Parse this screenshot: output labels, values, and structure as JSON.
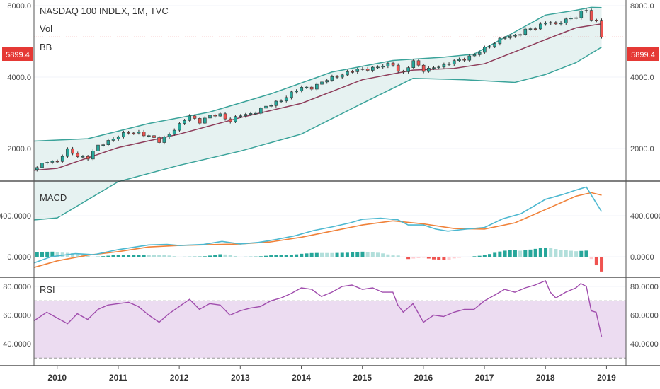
{
  "colors": {
    "up": "#26a69a",
    "down": "#ef5350",
    "bb_band": "#3aa39a",
    "bb_basis": "#8e3c5a",
    "bb_fill": "#e6f2f1",
    "macd_line": "#4db8d0",
    "signal_line": "#f0823a",
    "hist_up_strong": "#26a69a",
    "hist_up_weak": "#b2dfdb",
    "hist_down_strong": "#ef5350",
    "hist_down_weak": "#ffcdd2",
    "rsi_line": "#a04dad",
    "rsi_fill": "#ecdcf1",
    "price_line": "#e53935",
    "grid": "#f0f3fa",
    "axis_text": "#4a4a4a"
  },
  "legend": {
    "title": "NASDAQ 100 INDEX, 1M, TVC",
    "vol": "Vol",
    "bb": "BB"
  },
  "price_tag": "5899.4",
  "x_axis": {
    "ticks": [
      {
        "t": 2010.0,
        "label": "2010"
      },
      {
        "t": 2011.0,
        "label": "2011"
      },
      {
        "t": 2012.0,
        "label": "2012"
      },
      {
        "t": 2013.0,
        "label": "2013"
      },
      {
        "t": 2014.0,
        "label": "2014"
      },
      {
        "t": 2015.0,
        "label": "2015"
      },
      {
        "t": 2016.0,
        "label": "2016"
      },
      {
        "t": 2017.0,
        "label": "2017"
      },
      {
        "t": 2018.0,
        "label": "2018"
      },
      {
        "t": 2019.0,
        "label": "2019"
      }
    ]
  },
  "chart_data": [
    {
      "type": "candlestick",
      "title": "NASDAQ 100 INDEX, 1M, TVC",
      "x_range": [
        2009.62,
        2019.32
      ],
      "y_ticks": [
        {
          "v": 2000,
          "label": "2000.0"
        },
        {
          "v": 4000,
          "label": "4000.0"
        },
        {
          "v": 8000,
          "label": "8000.0"
        }
      ],
      "last_price": 5899.4,
      "close_points": [
        [
          2009.67,
          1650
        ],
        [
          2009.83,
          1780
        ],
        [
          2010.0,
          1760
        ],
        [
          2010.17,
          1960
        ],
        [
          2010.33,
          1870
        ],
        [
          2010.5,
          1820
        ],
        [
          2010.67,
          2040
        ],
        [
          2010.83,
          2160
        ],
        [
          2011.0,
          2250
        ],
        [
          2011.17,
          2330
        ],
        [
          2011.33,
          2350
        ],
        [
          2011.5,
          2250
        ],
        [
          2011.67,
          2140
        ],
        [
          2011.83,
          2310
        ],
        [
          2012.0,
          2500
        ],
        [
          2012.17,
          2750
        ],
        [
          2012.33,
          2600
        ],
        [
          2012.5,
          2730
        ],
        [
          2012.67,
          2780
        ],
        [
          2012.83,
          2620
        ],
        [
          2013.0,
          2750
        ],
        [
          2013.17,
          2800
        ],
        [
          2013.33,
          2940
        ],
        [
          2013.5,
          3040
        ],
        [
          2013.67,
          3210
        ],
        [
          2013.83,
          3420
        ],
        [
          2014.0,
          3590
        ],
        [
          2014.17,
          3630
        ],
        [
          2014.33,
          3800
        ],
        [
          2014.5,
          3950
        ],
        [
          2014.67,
          4130
        ],
        [
          2014.83,
          4240
        ],
        [
          2015.0,
          4300
        ],
        [
          2015.17,
          4390
        ],
        [
          2015.33,
          4450
        ],
        [
          2015.5,
          4540
        ],
        [
          2015.58,
          4270
        ],
        [
          2015.67,
          4200
        ],
        [
          2015.83,
          4640
        ],
        [
          2016.0,
          4280
        ],
        [
          2016.17,
          4420
        ],
        [
          2016.33,
          4420
        ],
        [
          2016.5,
          4710
        ],
        [
          2016.67,
          4780
        ],
        [
          2016.83,
          4910
        ],
        [
          2017.0,
          5330
        ],
        [
          2017.17,
          5560
        ],
        [
          2017.33,
          5880
        ],
        [
          2017.5,
          6000
        ],
        [
          2017.67,
          6300
        ],
        [
          2017.83,
          6390
        ],
        [
          2018.0,
          6870
        ],
        [
          2018.08,
          6850
        ],
        [
          2018.17,
          6600
        ],
        [
          2018.33,
          6970
        ],
        [
          2018.5,
          7240
        ],
        [
          2018.58,
          7510
        ],
        [
          2018.67,
          7610
        ],
        [
          2018.75,
          6960
        ],
        [
          2018.83,
          6940
        ],
        [
          2018.92,
          5899.4
        ]
      ],
      "series": [
        {
          "name": "BB",
          "role": "upper",
          "points": [
            [
              2009.62,
              2150
            ],
            [
              2010.5,
              2200
            ],
            [
              2011.5,
              2550
            ],
            [
              2012.5,
              2850
            ],
            [
              2013.5,
              3400
            ],
            [
              2014.5,
              4200
            ],
            [
              2015.5,
              4700
            ],
            [
              2016.33,
              4850
            ],
            [
              2016.83,
              5000
            ],
            [
              2017.5,
              6200
            ],
            [
              2018.0,
              7300
            ],
            [
              2018.5,
              7650
            ],
            [
              2018.75,
              7870
            ],
            [
              2018.92,
              7850
            ]
          ]
        },
        {
          "name": "BB",
          "role": "basis",
          "points": [
            [
              2009.62,
              1620
            ],
            [
              2010.0,
              1650
            ],
            [
              2011.0,
              2020
            ],
            [
              2012.0,
              2300
            ],
            [
              2013.0,
              2700
            ],
            [
              2014.0,
              3100
            ],
            [
              2015.0,
              3900
            ],
            [
              2015.83,
              4280
            ],
            [
              2016.5,
              4350
            ],
            [
              2017.0,
              4550
            ],
            [
              2018.0,
              5750
            ],
            [
              2018.5,
              6450
            ],
            [
              2018.92,
              6700
            ]
          ]
        },
        {
          "name": "BB",
          "role": "lower",
          "points": [
            [
              2009.62,
              1000
            ],
            [
              2010.0,
              1020
            ],
            [
              2011.0,
              1450
            ],
            [
              2012.0,
              1700
            ],
            [
              2013.0,
              1950
            ],
            [
              2014.0,
              2300
            ],
            [
              2015.0,
              3100
            ],
            [
              2015.83,
              3950
            ],
            [
              2016.67,
              3900
            ],
            [
              2017.5,
              3800
            ],
            [
              2018.0,
              4100
            ],
            [
              2018.5,
              4600
            ],
            [
              2018.92,
              5350
            ]
          ]
        }
      ]
    },
    {
      "type": "line",
      "title": "MACD",
      "y_ticks": [
        {
          "v": 0,
          "label": "0.0000"
        },
        {
          "v": 400,
          "label": "400.0000"
        }
      ],
      "series": [
        {
          "name": "MACD",
          "role": "macd",
          "points": [
            [
              2009.62,
              -60
            ],
            [
              2009.9,
              0
            ],
            [
              2010.3,
              30
            ],
            [
              2010.6,
              20
            ],
            [
              2011.0,
              70
            ],
            [
              2011.5,
              115
            ],
            [
              2011.8,
              120
            ],
            [
              2012.0,
              110
            ],
            [
              2012.4,
              120
            ],
            [
              2012.7,
              150
            ],
            [
              2013.0,
              125
            ],
            [
              2013.3,
              140
            ],
            [
              2013.6,
              170
            ],
            [
              2013.9,
              205
            ],
            [
              2014.2,
              255
            ],
            [
              2014.5,
              290
            ],
            [
              2014.8,
              330
            ],
            [
              2015.0,
              365
            ],
            [
              2015.3,
              375
            ],
            [
              2015.58,
              360
            ],
            [
              2015.75,
              310
            ],
            [
              2016.0,
              310
            ],
            [
              2016.2,
              270
            ],
            [
              2016.4,
              250
            ],
            [
              2016.7,
              270
            ],
            [
              2017.0,
              285
            ],
            [
              2017.3,
              370
            ],
            [
              2017.6,
              420
            ],
            [
              2018.0,
              560
            ],
            [
              2018.3,
              610
            ],
            [
              2018.5,
              650
            ],
            [
              2018.67,
              680
            ],
            [
              2018.92,
              440
            ]
          ]
        },
        {
          "name": "Signal",
          "role": "signal",
          "points": [
            [
              2009.62,
              -105
            ],
            [
              2010.0,
              -40
            ],
            [
              2010.5,
              15
            ],
            [
              2011.0,
              50
            ],
            [
              2011.5,
              95
            ],
            [
              2012.0,
              110
            ],
            [
              2012.5,
              118
            ],
            [
              2013.0,
              125
            ],
            [
              2013.5,
              145
            ],
            [
              2014.0,
              190
            ],
            [
              2014.5,
              250
            ],
            [
              2015.0,
              310
            ],
            [
              2015.5,
              350
            ],
            [
              2016.0,
              320
            ],
            [
              2016.5,
              275
            ],
            [
              2017.0,
              270
            ],
            [
              2017.5,
              330
            ],
            [
              2018.0,
              460
            ],
            [
              2018.5,
              590
            ],
            [
              2018.75,
              625
            ],
            [
              2018.92,
              600
            ]
          ]
        }
      ]
    },
    {
      "type": "line",
      "title": "RSI",
      "y_ticks": [
        {
          "v": 40,
          "label": "40.0000"
        },
        {
          "v": 60,
          "label": "60.0000"
        },
        {
          "v": 80,
          "label": "80.0000"
        }
      ],
      "band": [
        30,
        70
      ],
      "series": [
        {
          "name": "RSI",
          "points": [
            [
              2009.62,
              56
            ],
            [
              2009.83,
              62
            ],
            [
              2010.0,
              58
            ],
            [
              2010.17,
              54
            ],
            [
              2010.33,
              61
            ],
            [
              2010.5,
              57
            ],
            [
              2010.67,
              64
            ],
            [
              2010.83,
              67
            ],
            [
              2011.0,
              68
            ],
            [
              2011.17,
              69
            ],
            [
              2011.33,
              66
            ],
            [
              2011.5,
              60
            ],
            [
              2011.67,
              55
            ],
            [
              2011.83,
              61
            ],
            [
              2012.0,
              66
            ],
            [
              2012.17,
              71
            ],
            [
              2012.33,
              64
            ],
            [
              2012.5,
              68
            ],
            [
              2012.67,
              67
            ],
            [
              2012.83,
              60
            ],
            [
              2013.0,
              63
            ],
            [
              2013.17,
              65
            ],
            [
              2013.33,
              66
            ],
            [
              2013.5,
              70
            ],
            [
              2013.67,
              72
            ],
            [
              2013.83,
              75
            ],
            [
              2014.0,
              79
            ],
            [
              2014.17,
              78
            ],
            [
              2014.33,
              73
            ],
            [
              2014.5,
              76
            ],
            [
              2014.67,
              80
            ],
            [
              2014.83,
              81
            ],
            [
              2015.0,
              78
            ],
            [
              2015.17,
              79
            ],
            [
              2015.33,
              76
            ],
            [
              2015.5,
              76
            ],
            [
              2015.58,
              67
            ],
            [
              2015.67,
              62
            ],
            [
              2015.83,
              68
            ],
            [
              2016.0,
              55
            ],
            [
              2016.17,
              60
            ],
            [
              2016.33,
              59
            ],
            [
              2016.5,
              62
            ],
            [
              2016.67,
              64
            ],
            [
              2016.83,
              64
            ],
            [
              2017.0,
              70
            ],
            [
              2017.17,
              74
            ],
            [
              2017.33,
              78
            ],
            [
              2017.5,
              76
            ],
            [
              2017.67,
              79
            ],
            [
              2017.83,
              81
            ],
            [
              2018.0,
              84
            ],
            [
              2018.08,
              76
            ],
            [
              2018.17,
              72
            ],
            [
              2018.33,
              76
            ],
            [
              2018.5,
              79
            ],
            [
              2018.58,
              82
            ],
            [
              2018.67,
              80
            ],
            [
              2018.75,
              63
            ],
            [
              2018.83,
              62
            ],
            [
              2018.92,
              45
            ]
          ]
        }
      ]
    }
  ]
}
